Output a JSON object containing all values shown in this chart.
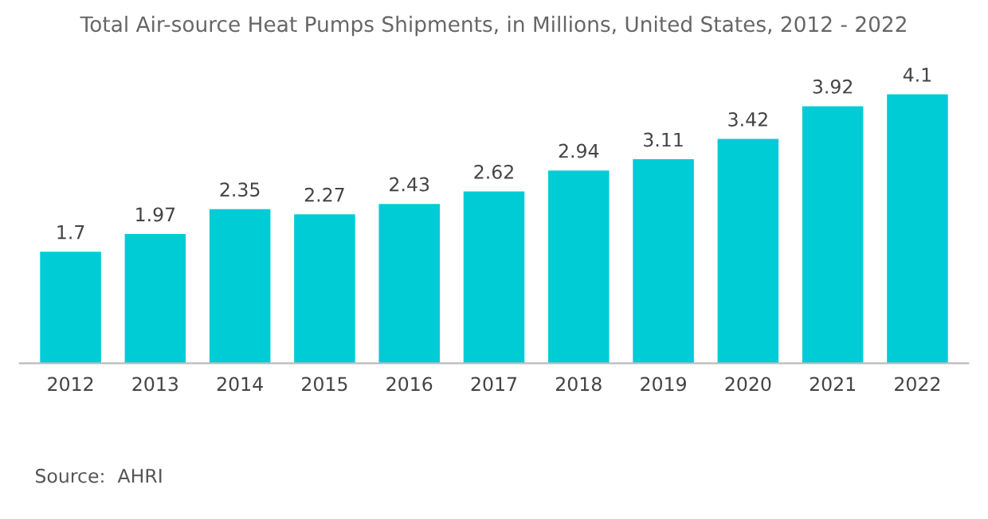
{
  "chart_data": {
    "type": "bar",
    "title": "Total Air-source Heat Pumps Shipments, in Millions, United States, 2012 - 2022",
    "categories": [
      "2012",
      "2013",
      "2014",
      "2015",
      "2016",
      "2017",
      "2018",
      "2019",
      "2020",
      "2021",
      "2022"
    ],
    "values": [
      1.7,
      1.97,
      2.35,
      2.27,
      2.43,
      2.62,
      2.94,
      3.11,
      3.42,
      3.92,
      4.1
    ],
    "color": "#00ccd6",
    "data_labels": true,
    "grid": false,
    "tick_labels": "x",
    "annotations": [
      "Source:  AHRI"
    ]
  }
}
